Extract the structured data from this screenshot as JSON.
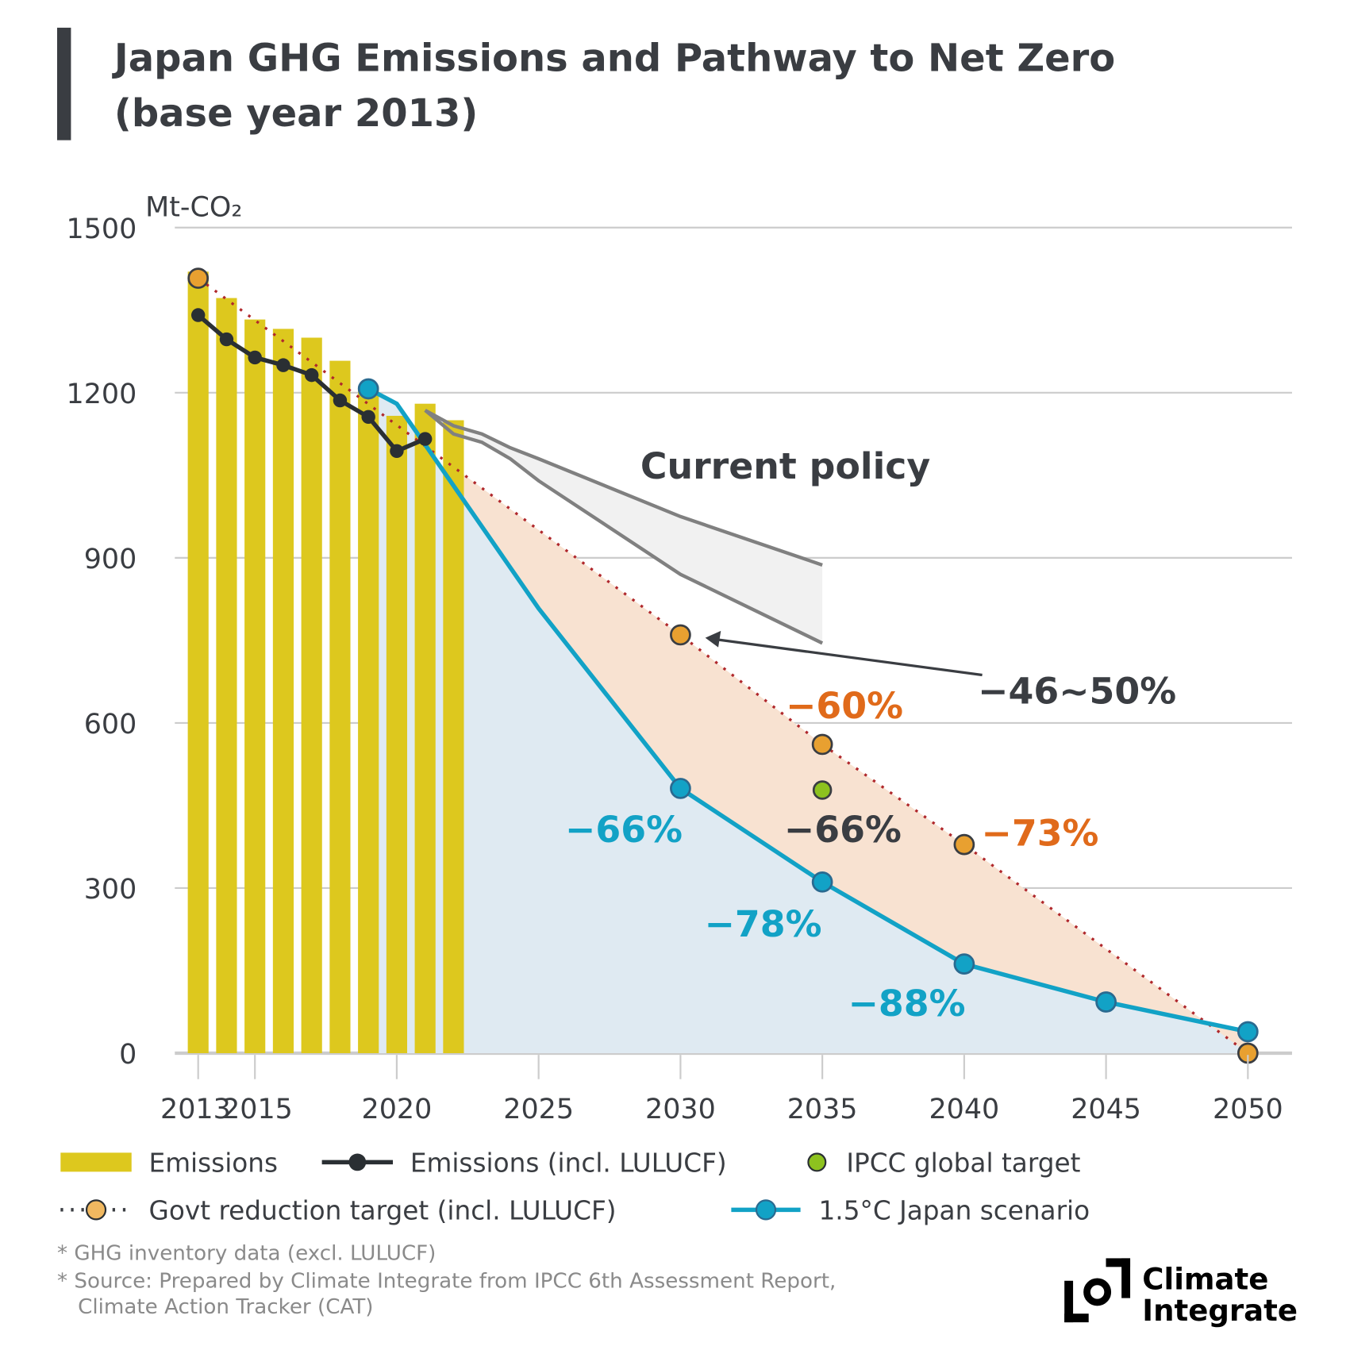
{
  "chart_data": {
    "type": "bar+line",
    "title": "Japan GHG Emissions and Pathway to Net Zero",
    "subtitle": "(base year 2013)",
    "ylabel": "Mt-CO₂",
    "ylim": [
      0,
      1500
    ],
    "yticks": [
      0,
      300,
      600,
      900,
      1200,
      1500
    ],
    "xlim": [
      2013,
      2050
    ],
    "xticks": [
      2013,
      2015,
      2020,
      2025,
      2030,
      2035,
      2040,
      2045,
      2050
    ],
    "grid": true,
    "series": [
      {
        "name": "Emissions",
        "kind": "bar",
        "color": "#ddc81e",
        "x": [
          2013,
          2014,
          2015,
          2016,
          2017,
          2018,
          2019,
          2020,
          2021,
          2022
        ],
        "y": [
          1420,
          1372,
          1333,
          1316,
          1300,
          1258,
          1212,
          1158,
          1180,
          1150
        ]
      },
      {
        "name": "Emissions (incl. LULUCF)",
        "kind": "line",
        "color": "#2a2f33",
        "x": [
          2013,
          2014,
          2015,
          2016,
          2017,
          2018,
          2019,
          2020,
          2021
        ],
        "y": [
          1341,
          1297,
          1264,
          1250,
          1232,
          1186,
          1156,
          1094,
          1116
        ]
      },
      {
        "name": "Govt reduction target (incl. LULUCF)",
        "kind": "dotted",
        "color": "#b0282c",
        "marker": "#e8a030",
        "x": [
          2013,
          2030,
          2035,
          2040,
          2050
        ],
        "y": [
          1408,
          760,
          561,
          379,
          0
        ]
      },
      {
        "name": "1.5°C Japan scenario",
        "kind": "line",
        "color": "#12a2c6",
        "x": [
          2019,
          2020,
          2025,
          2030,
          2035,
          2040,
          2045,
          2050
        ],
        "y": [
          1207,
          1180,
          808,
          481,
          311,
          162,
          93,
          39
        ],
        "markers": [
          2019,
          2030,
          2035,
          2040,
          2045,
          2050
        ]
      },
      {
        "name": "IPCC global target",
        "kind": "point",
        "color": "#8dc21f",
        "x": [
          2035
        ],
        "y": [
          478
        ]
      },
      {
        "name": "Current policy",
        "kind": "band",
        "color": "#808080",
        "x": [
          2021,
          2022,
          2023,
          2024,
          2025,
          2030,
          2035
        ],
        "upper": [
          1168,
          1140,
          1125,
          1100,
          1080,
          975,
          887
        ],
        "lower": [
          1168,
          1125,
          1110,
          1080,
          1040,
          870,
          745
        ]
      }
    ],
    "annotations": [
      {
        "text": "Current policy",
        "color": "#3a3d42"
      },
      {
        "text": "−46~50%",
        "color": "#3a3d42"
      },
      {
        "text": "−60%",
        "color": "#e06a1a"
      },
      {
        "text": "−66%",
        "color": "#12a2c6"
      },
      {
        "text": "−66%",
        "color": "#3a3d42"
      },
      {
        "text": "−73%",
        "color": "#e06a1a"
      },
      {
        "text": "−78%",
        "color": "#12a2c6"
      },
      {
        "text": "−88%",
        "color": "#12a2c6"
      }
    ],
    "legend": [
      "Emissions",
      "Emissions (incl. LULUCF)",
      "IPCC global target",
      "Govt reduction target (incl. LULUCF)",
      "1.5°C Japan scenario"
    ]
  },
  "notes": [
    "* GHG inventory data (excl. LULUCF)",
    "* Source: Prepared by Climate Integrate from  IPCC 6th Assessment Report,",
    "Climate Action Tracker (CAT)"
  ],
  "logo": {
    "line1": "Climate",
    "line2": "Integrate"
  }
}
